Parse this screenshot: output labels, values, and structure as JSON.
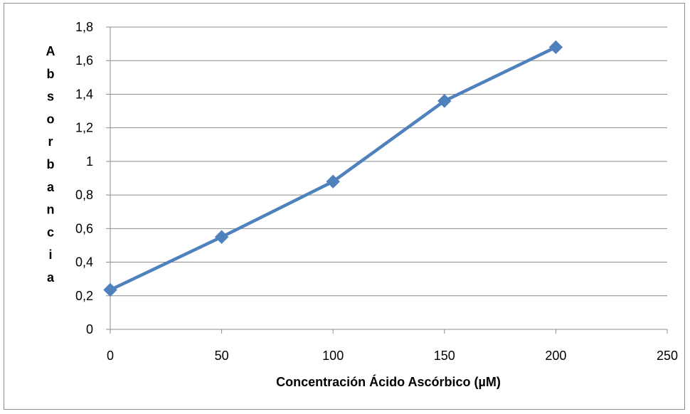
{
  "chart_data": {
    "type": "line",
    "title": "",
    "xlabel": "Concentración Ácido Ascórbico (µM)",
    "ylabel": "Absorbancia",
    "x": [
      0,
      50,
      100,
      150,
      200
    ],
    "series": [
      {
        "values": [
          0.235,
          0.55,
          0.88,
          1.36,
          1.68
        ],
        "color": "#4F81BD"
      }
    ],
    "xlim": [
      0,
      250
    ],
    "ylim": [
      0,
      1.8
    ],
    "xticks": [
      0,
      50,
      100,
      150,
      200,
      250
    ],
    "xtick_labels": [
      "0",
      "50",
      "100",
      "150",
      "200",
      "250"
    ],
    "yticks": [
      0,
      0.2,
      0.4,
      0.6,
      0.8,
      1,
      1.2,
      1.4,
      1.6,
      1.8
    ],
    "ytick_labels": [
      "0",
      "0,2",
      "0,4",
      "0,6",
      "0,8",
      "1",
      "1,2",
      "1,4",
      "1,6",
      "1,8"
    ],
    "grid": true,
    "marker": "diamond",
    "legend": "none"
  }
}
